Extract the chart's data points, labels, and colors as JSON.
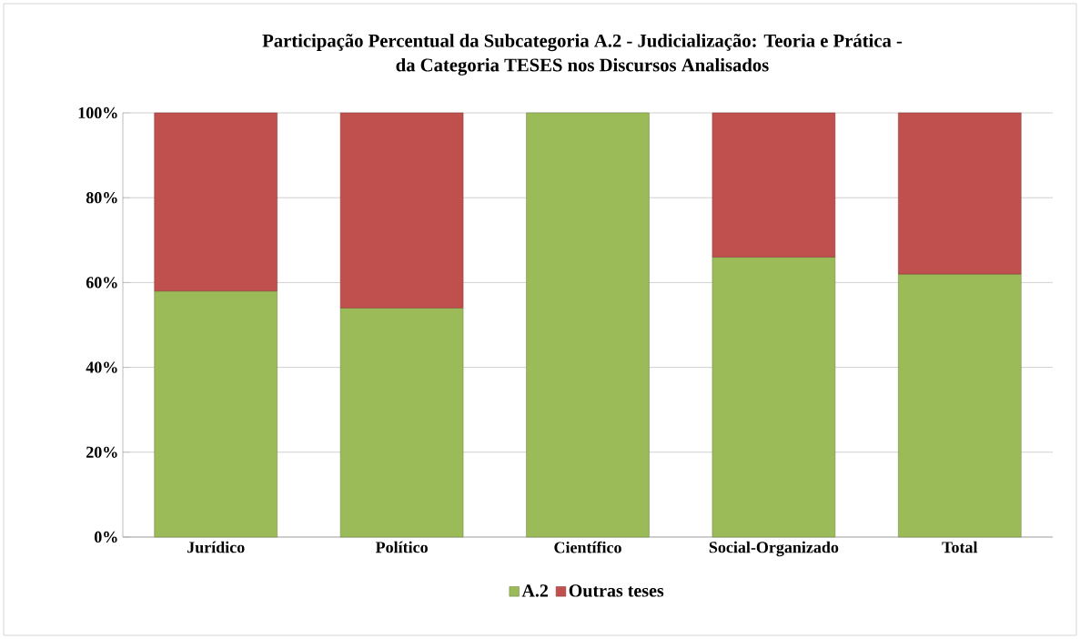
{
  "chart_data": {
    "type": "bar",
    "stacked": true,
    "title": "Participação Percentual da Subcategoria  A.2 -  Judicialização: Teoria e Prática -\nda Categoria TESES nos Discursos Analisados",
    "categories": [
      "Jurídico",
      "Político",
      "Científico",
      "Social-Organizado",
      "Total"
    ],
    "series": [
      {
        "name": "A.2",
        "color": "#9bbb59",
        "values": [
          58,
          54,
          100,
          66,
          62
        ]
      },
      {
        "name": "Outras teses",
        "color": "#c0504d",
        "values": [
          42,
          46,
          null,
          34,
          38
        ]
      }
    ],
    "ylim": [
      0,
      100
    ],
    "yticks": [
      {
        "value": 0,
        "label": "0%"
      },
      {
        "value": 20,
        "label": "20%"
      },
      {
        "value": 40,
        "label": "40%"
      },
      {
        "value": 60,
        "label": "60%"
      },
      {
        "value": 80,
        "label": "80%"
      },
      {
        "value": 100,
        "label": "100%"
      }
    ],
    "grid": "y",
    "legend": "bottom"
  }
}
